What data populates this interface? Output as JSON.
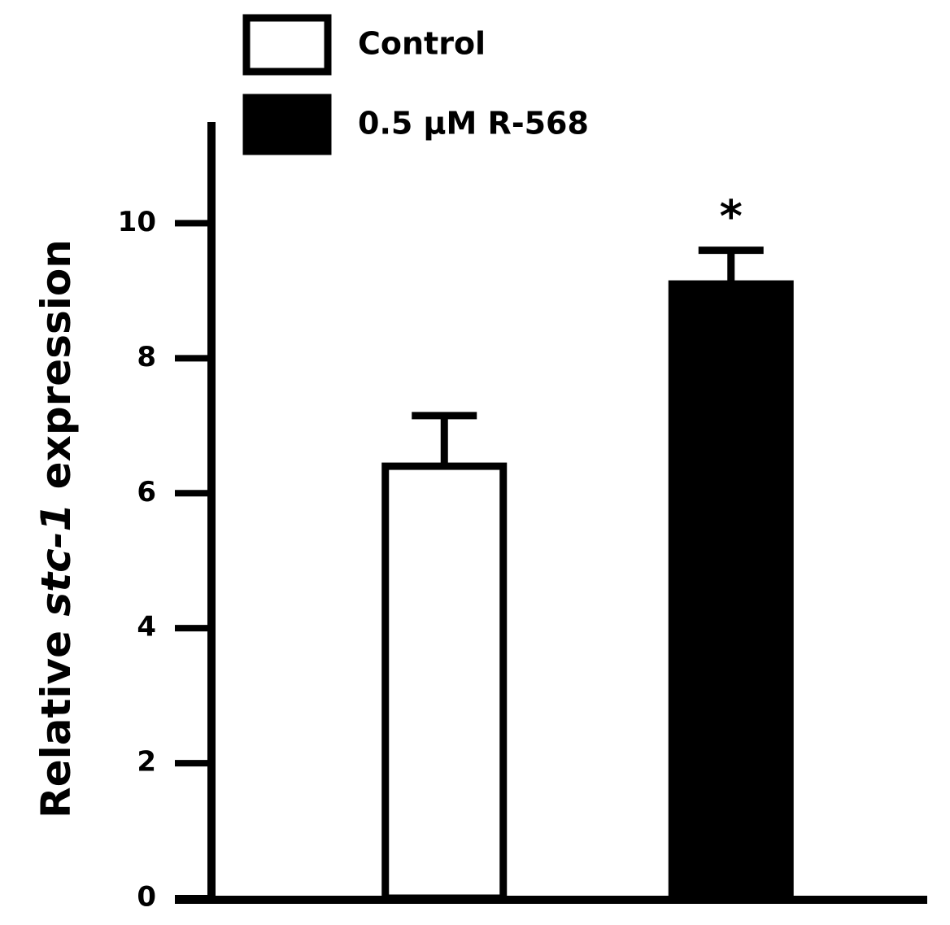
{
  "chart_data": {
    "type": "bar",
    "ylabel_parts": [
      {
        "text": "Relative "
      },
      {
        "text": "stc-1",
        "italic": true
      },
      {
        "text": " expression"
      }
    ],
    "categories": [
      null,
      null
    ],
    "series": [
      {
        "name": "Control",
        "color": "#ffffff",
        "values": [
          6.4,
          null
        ],
        "errors": [
          0.75,
          null
        ]
      },
      {
        "name": "0.5 µM R-568",
        "color": "#000000",
        "values": [
          null,
          9.1
        ],
        "errors": [
          null,
          0.5
        ]
      }
    ],
    "annotations": [
      {
        "text": "*"
      }
    ],
    "ylim": [
      0,
      11.5
    ],
    "yticks": [
      0,
      2,
      4,
      6,
      8,
      10
    ],
    "legend": "top"
  }
}
